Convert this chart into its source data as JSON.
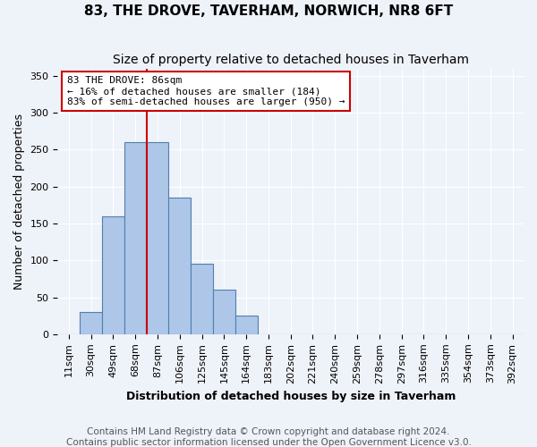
{
  "title": "83, THE DROVE, TAVERHAM, NORWICH, NR8 6FT",
  "subtitle": "Size of property relative to detached houses in Taverham",
  "xlabel": "Distribution of detached houses by size in Taverham",
  "ylabel": "Number of detached properties",
  "bin_labels": [
    "11sqm",
    "30sqm",
    "49sqm",
    "68sqm",
    "87sqm",
    "106sqm",
    "125sqm",
    "145sqm",
    "164sqm",
    "183sqm",
    "202sqm",
    "221sqm",
    "240sqm",
    "259sqm",
    "278sqm",
    "297sqm",
    "316sqm",
    "335sqm",
    "354sqm",
    "373sqm",
    "392sqm"
  ],
  "bar_heights": [
    0,
    30,
    160,
    260,
    260,
    185,
    95,
    60,
    25,
    0,
    0,
    0,
    0,
    0,
    0,
    0,
    0,
    0,
    0,
    0,
    0
  ],
  "bar_color": "#aec6e8",
  "bar_edge_color": "#5080b0",
  "annotation_text": "83 THE DROVE: 86sqm\n← 16% of detached houses are smaller (184)\n83% of semi-detached houses are larger (950) →",
  "annotation_box_color": "#ffffff",
  "annotation_box_edge_color": "#cc0000",
  "vline_color": "#cc0000",
  "footer_text": "Contains HM Land Registry data © Crown copyright and database right 2024.\nContains public sector information licensed under the Open Government Licence v3.0.",
  "title_fontsize": 11,
  "subtitle_fontsize": 10,
  "xlabel_fontsize": 9,
  "ylabel_fontsize": 9,
  "tick_fontsize": 8,
  "annotation_fontsize": 8,
  "footer_fontsize": 7.5,
  "ylim": [
    0,
    360
  ],
  "yticks": [
    0,
    50,
    100,
    150,
    200,
    250,
    300,
    350
  ],
  "background_color": "#eef2f9",
  "grid_color": "#ffffff"
}
